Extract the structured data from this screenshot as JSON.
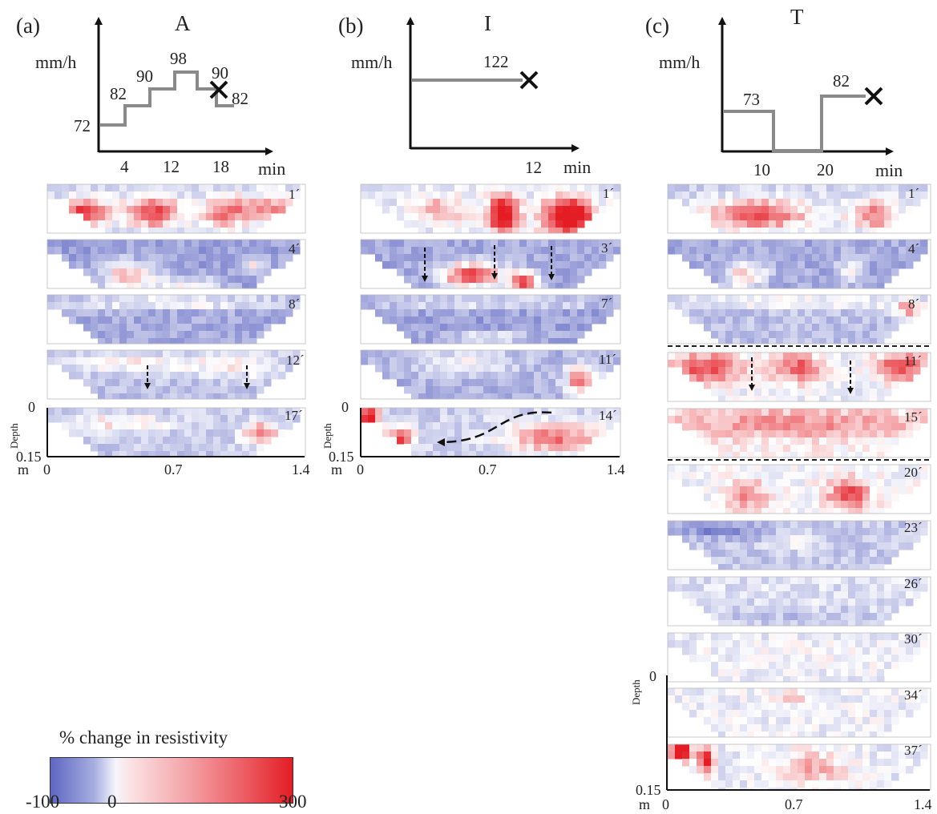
{
  "panels": [
    {
      "id": "a",
      "letter": "(a)",
      "title": "A",
      "unit_y": "mm/h",
      "unit_x": "min",
      "intensities": [
        "72",
        "82",
        "90",
        "98",
        "90",
        "82"
      ],
      "ticks": [
        "4",
        "12",
        "18"
      ],
      "times": [
        "1´",
        "4´",
        "8´",
        "12´",
        "17´"
      ]
    },
    {
      "id": "b",
      "letter": "(b)",
      "title": "I",
      "unit_y": "mm/h",
      "unit_x": "min",
      "intensities": [
        "122"
      ],
      "ticks": [
        "12"
      ],
      "times": [
        "1´",
        "3´",
        "7´",
        "11´",
        "14´"
      ]
    },
    {
      "id": "c",
      "letter": "(c)",
      "title": "T",
      "unit_y": "mm/h",
      "unit_x": "min",
      "intensities": [
        "73",
        "82"
      ],
      "ticks": [
        "10",
        "20"
      ],
      "times": [
        "1´",
        "4´",
        "8´",
        "11´",
        "15´",
        "20´",
        "23´",
        "26´",
        "30´",
        "34´",
        "37´"
      ]
    }
  ],
  "axes": {
    "depth_label": "Depth",
    "depth_top": "0",
    "depth_bottom": "0.15",
    "m_label": "m",
    "x0": "0",
    "x_mid": "0.7",
    "x_max": "1.4"
  },
  "colorbar": {
    "title": "% change in resistivity",
    "min": "-100",
    "zero": "0",
    "max": "300",
    "colors": {
      "negative": "#5e66c2",
      "neutral": "#ffffff",
      "positive": "#e41d25"
    }
  }
}
